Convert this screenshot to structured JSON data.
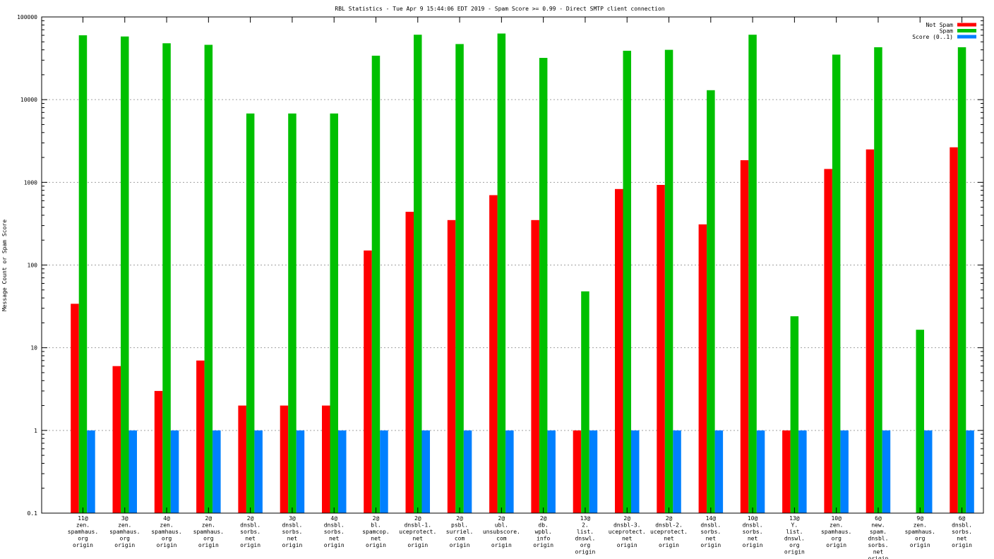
{
  "chart_data": {
    "type": "bar",
    "title": "RBL Statistics - Tue Apr  9 15:44:06 EDT 2019 - Spam Score >= 0.99 - Direct SMTP client connection",
    "xlabel": "",
    "ylabel": "Message Count or Spam Score",
    "yscale": "log",
    "ylim": [
      0.1,
      100000
    ],
    "yticks": [
      "0.1",
      "1",
      "10",
      "100",
      "1000",
      "10000",
      "100000"
    ],
    "grid": true,
    "legend_position": "top-right",
    "categories": [
      [
        "11@",
        "zen.",
        "spamhaus.",
        "org",
        "origin"
      ],
      [
        "3@",
        "zen.",
        "spamhaus.",
        "org",
        "origin"
      ],
      [
        "4@",
        "zen.",
        "spamhaus.",
        "org",
        "origin"
      ],
      [
        "2@",
        "zen.",
        "spamhaus.",
        "org",
        "origin"
      ],
      [
        "2@",
        "dnsbl.",
        "sorbs.",
        "net",
        "origin"
      ],
      [
        "3@",
        "dnsbl.",
        "sorbs.",
        "net",
        "origin"
      ],
      [
        "4@",
        "dnsbl.",
        "sorbs.",
        "net",
        "origin"
      ],
      [
        "2@",
        "bl.",
        "spamcop.",
        "net",
        "origin"
      ],
      [
        "2@",
        "dnsbl-1.",
        "uceprotect.",
        "net",
        "origin"
      ],
      [
        "2@",
        "psbl.",
        "surriel.",
        "com",
        "origin"
      ],
      [
        "2@",
        "ubl.",
        "unsubscore.",
        "com",
        "origin"
      ],
      [
        "2@",
        "db.",
        "wpbl.",
        "info",
        "origin"
      ],
      [
        "13@",
        "2.",
        "list.",
        "dnswl.",
        "org",
        "origin"
      ],
      [
        "2@",
        "dnsbl-3.",
        "uceprotect.",
        "net",
        "origin"
      ],
      [
        "2@",
        "dnsbl-2.",
        "uceprotect.",
        "net",
        "origin"
      ],
      [
        "14@",
        "dnsbl.",
        "sorbs.",
        "net",
        "origin"
      ],
      [
        "10@",
        "dnsbl.",
        "sorbs.",
        "net",
        "origin"
      ],
      [
        "13@",
        "Y.",
        "list.",
        "dnswl.",
        "org",
        "origin"
      ],
      [
        "10@",
        "zen.",
        "spamhaus.",
        "org",
        "origin"
      ],
      [
        "6@",
        "new.",
        "spam.",
        "dnsbl.",
        "sorbs.",
        "net",
        "origin"
      ],
      [
        "9@",
        "zen.",
        "spamhaus.",
        "org",
        "origin"
      ],
      [
        "6@",
        "dnsbl.",
        "sorbs.",
        "net",
        "origin"
      ]
    ],
    "series": [
      {
        "name": "Not Spam",
        "color": "#ff0000",
        "values": [
          34,
          6,
          3,
          7,
          2,
          2,
          2,
          150,
          440,
          350,
          700,
          350,
          1,
          830,
          930,
          310,
          1850,
          1,
          1450,
          2500,
          null,
          2650
        ]
      },
      {
        "name": "Spam",
        "color": "#00c000",
        "values": [
          60000,
          58000,
          48000,
          46000,
          6800,
          6800,
          6800,
          34000,
          61000,
          47000,
          63000,
          32000,
          48,
          39000,
          40000,
          13000,
          61000,
          24,
          35000,
          43000,
          16.5,
          43000
        ]
      },
      {
        "name": "Score (0..1)",
        "color": "#0080ff",
        "values": [
          1,
          1,
          1,
          1,
          1,
          1,
          1,
          1,
          1,
          1,
          1,
          1,
          1,
          1,
          1,
          1,
          1,
          1,
          1,
          1,
          1,
          1
        ]
      }
    ]
  }
}
